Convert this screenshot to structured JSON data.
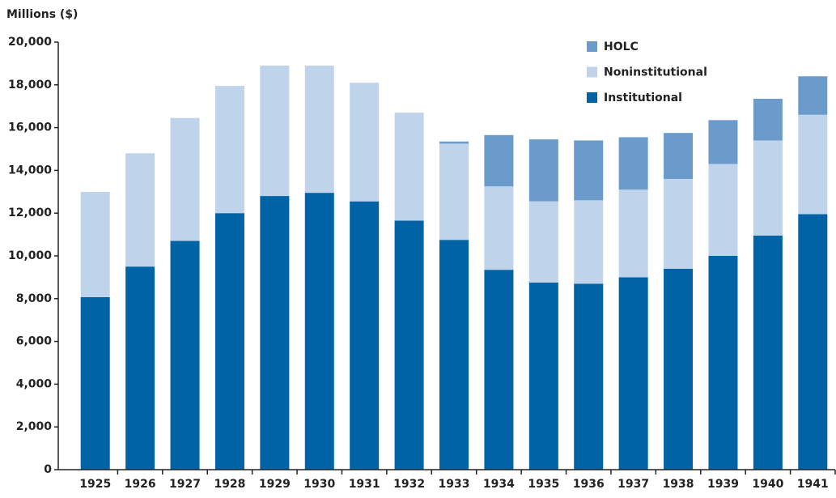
{
  "chart_data": {
    "type": "stacked_bar",
    "y_label": "Millions ($)",
    "categories": [
      "1925",
      "1926",
      "1927",
      "1928",
      "1929",
      "1930",
      "1931",
      "1932",
      "1933",
      "1934",
      "1935",
      "1936",
      "1937",
      "1938",
      "1939",
      "1940",
      "1941"
    ],
    "series": [
      {
        "name": "Institutional",
        "color": "#0063a6",
        "values": [
          8070,
          9500,
          10700,
          12000,
          12800,
          12950,
          12550,
          11650,
          10750,
          9350,
          8750,
          8700,
          9000,
          9400,
          10000,
          10950,
          11950
        ]
      },
      {
        "name": "Noninstitutional",
        "color": "#bfd3ea",
        "values": [
          4920,
          5300,
          5750,
          5950,
          6100,
          5950,
          5550,
          5050,
          4500,
          3900,
          3800,
          3900,
          4100,
          4200,
          4300,
          4450,
          4650
        ]
      },
      {
        "name": "HOLC",
        "color": "#6a9bcb",
        "values": [
          null,
          null,
          null,
          null,
          null,
          null,
          null,
          null,
          100,
          2400,
          2900,
          2800,
          2450,
          2150,
          2050,
          1950,
          1800
        ]
      }
    ],
    "ylim": [
      0,
      20000
    ],
    "yticks": [
      0,
      {
        "value": 2000,
        "label": "2,000"
      },
      {
        "value": 4000,
        "label": "4,000"
      },
      {
        "value": 6000,
        "label": "6,000"
      },
      {
        "value": 8000,
        "label": "8,000"
      },
      {
        "value": 10000,
        "label": "10,000"
      },
      {
        "value": 12000,
        "label": "12,000"
      },
      {
        "value": 14000,
        "label": "14,000"
      },
      {
        "value": 16000,
        "label": "16,000"
      },
      {
        "value": 18000,
        "label": "18,000"
      },
      {
        "value": 20000,
        "label": "20,000"
      }
    ],
    "legend": "top-right"
  }
}
